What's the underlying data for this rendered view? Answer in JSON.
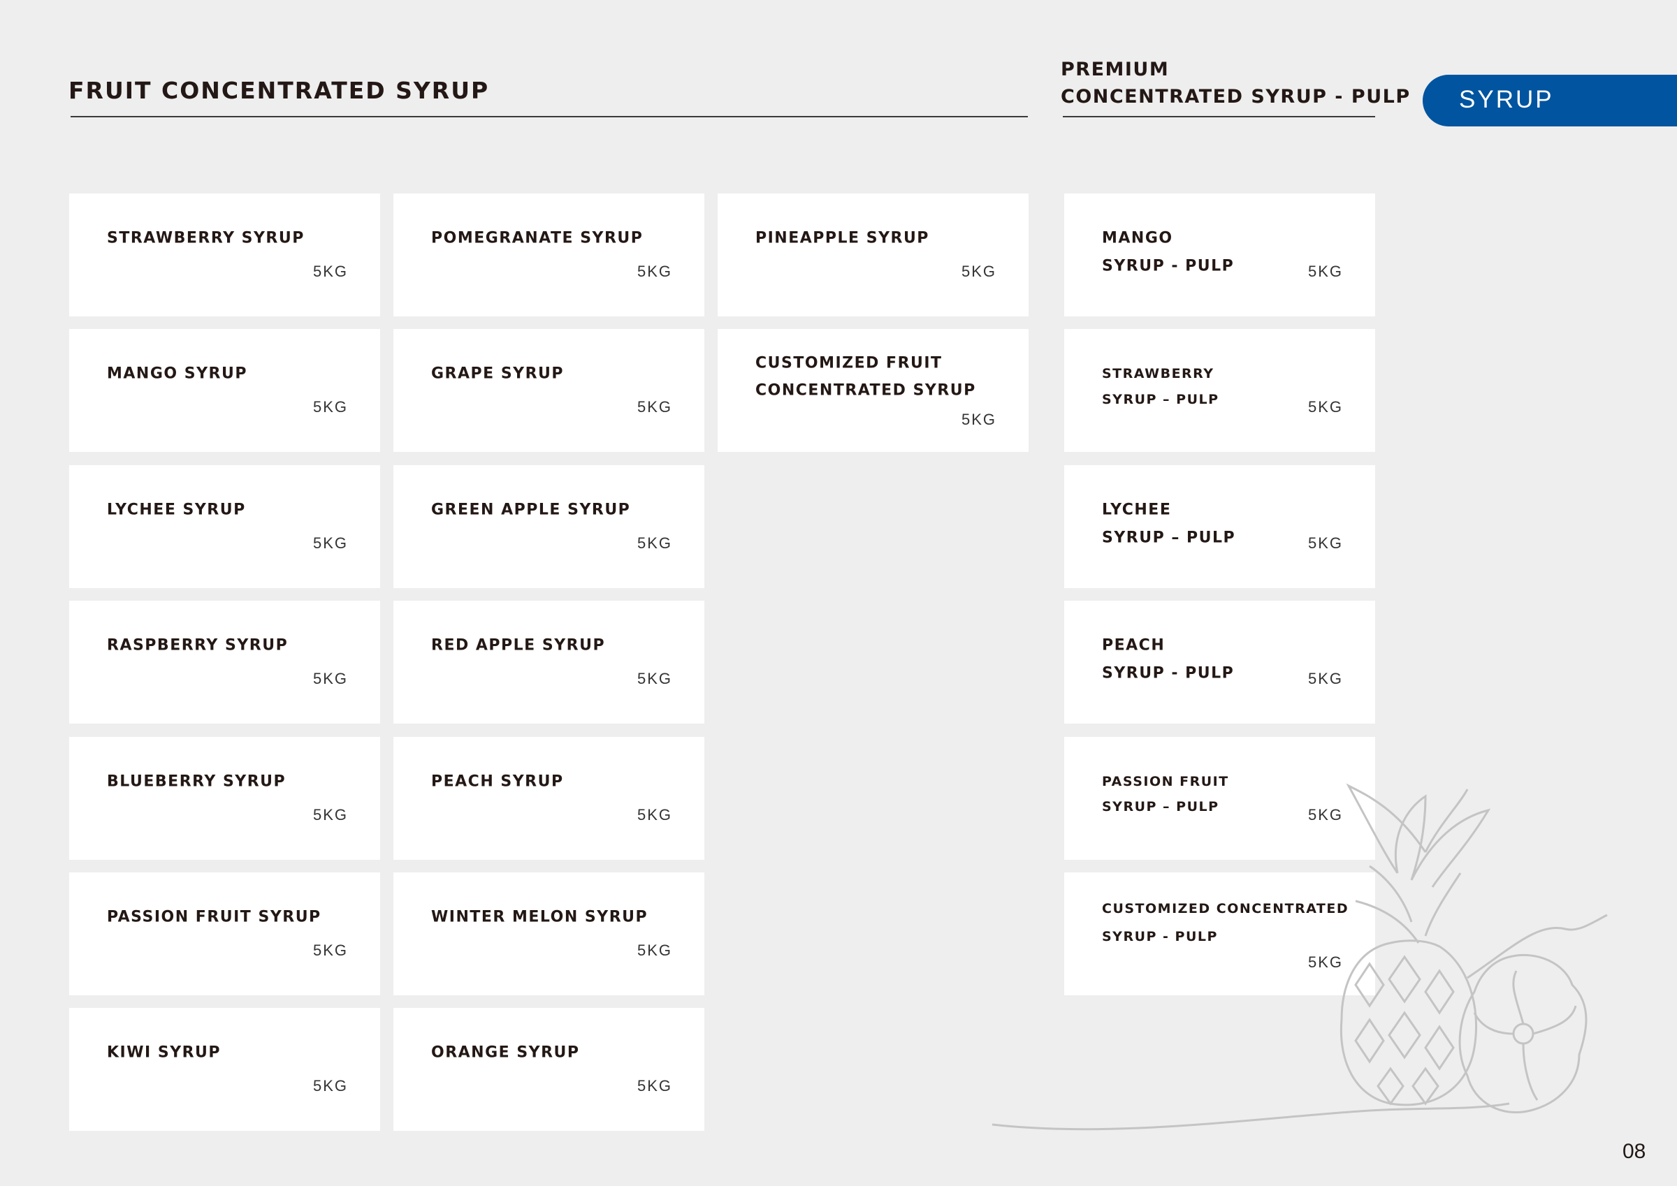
{
  "header": {
    "title": "FRUIT CONCENTRATED SYRUP",
    "premium_title_line1": "PREMIUM",
    "premium_title_line2": "CONCENTRATED SYRUP - PULP",
    "tab_label": "SYRUP"
  },
  "colors": {
    "accent": "#0054a0",
    "background": "#eeeeee",
    "card": "#ffffff"
  },
  "columns": [
    [
      {
        "lines": [
          "STRAWBERRY SYRUP"
        ],
        "size": "5KG"
      },
      {
        "lines": [
          "MANGO SYRUP"
        ],
        "size": "5KG"
      },
      {
        "lines": [
          "LYCHEE SYRUP"
        ],
        "size": "5KG"
      },
      {
        "lines": [
          "RASPBERRY SYRUP"
        ],
        "size": "5KG"
      },
      {
        "lines": [
          "BLUEBERRY SYRUP"
        ],
        "size": "5KG"
      },
      {
        "lines": [
          "PASSION FRUIT SYRUP"
        ],
        "size": "5KG"
      },
      {
        "lines": [
          "KIWI SYRUP"
        ],
        "size": "5KG"
      }
    ],
    [
      {
        "lines": [
          "POMEGRANATE SYRUP"
        ],
        "size": "5KG"
      },
      {
        "lines": [
          "GRAPE SYRUP"
        ],
        "size": "5KG"
      },
      {
        "lines": [
          "GREEN APPLE SYRUP"
        ],
        "size": "5KG"
      },
      {
        "lines": [
          "RED APPLE SYRUP"
        ],
        "size": "5KG"
      },
      {
        "lines": [
          "PEACH SYRUP"
        ],
        "size": "5KG"
      },
      {
        "lines": [
          "WINTER MELON SYRUP"
        ],
        "size": "5KG"
      },
      {
        "lines": [
          "ORANGE SYRUP"
        ],
        "size": "5KG"
      }
    ],
    [
      {
        "lines": [
          "PINEAPPLE SYRUP"
        ],
        "size": "5KG"
      },
      {
        "lines": [
          "CUSTOMIZED FRUIT",
          "CONCENTRATED SYRUP"
        ],
        "size": "5KG"
      }
    ],
    [
      {
        "lines": [
          "MANGO",
          "SYRUP - PULP"
        ],
        "size": "5KG"
      },
      {
        "lines": [
          "STRAWBERRY",
          "SYRUP – PULP"
        ],
        "size": "5KG"
      },
      {
        "lines": [
          "LYCHEE",
          "SYRUP – PULP"
        ],
        "size": "5KG"
      },
      {
        "lines": [
          "PEACH",
          "SYRUP - PULP"
        ],
        "size": "5KG"
      },
      {
        "lines": [
          "PASSION FRUIT",
          "SYRUP – PULP"
        ],
        "size": "5KG"
      },
      {
        "lines": [
          "CUSTOMIZED CONCENTRATED",
          "SYRUP - PULP"
        ],
        "size": "5KG"
      }
    ]
  ],
  "decoration": {
    "illustration": "pineapple-line-art"
  },
  "page_number": "08"
}
